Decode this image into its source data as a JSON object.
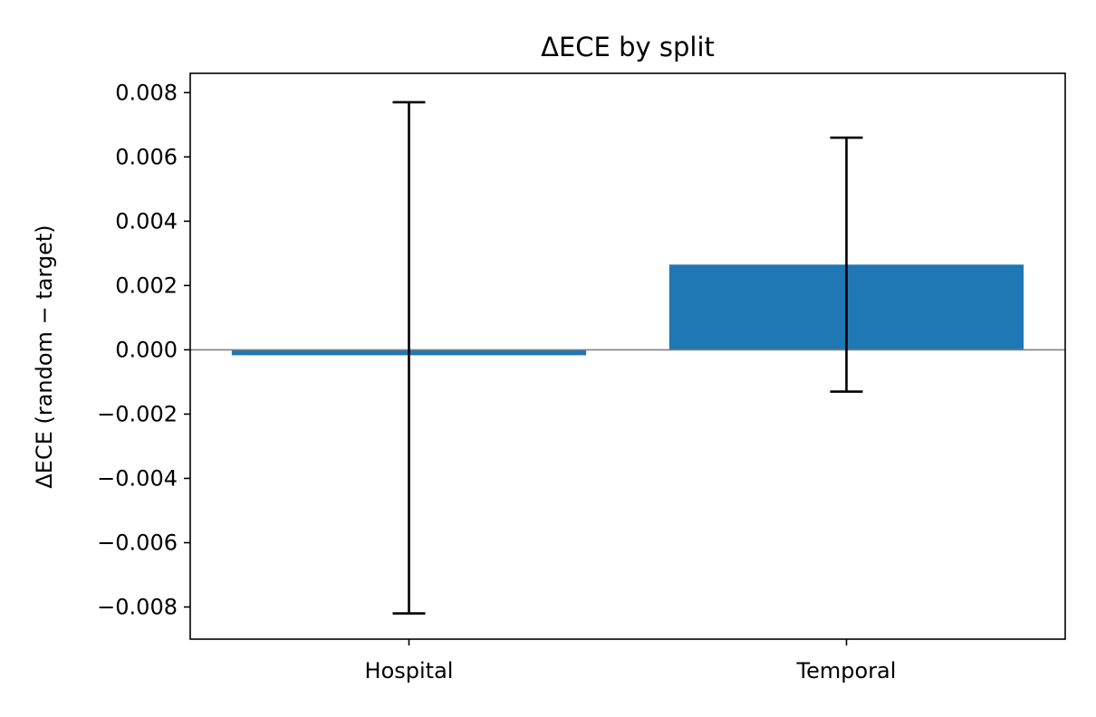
{
  "chart_data": {
    "type": "bar",
    "title": "ΔECE by split",
    "xlabel": "",
    "ylabel": "ΔECE (random − target)",
    "categories": [
      "Hospital",
      "Temporal"
    ],
    "values": [
      -0.00017,
      0.00265
    ],
    "error_bars": [
      {
        "category": "Hospital",
        "low": -0.0082,
        "high": 0.0077
      },
      {
        "category": "Temporal",
        "low": -0.0013,
        "high": 0.0066
      }
    ],
    "ylim": [
      -0.009,
      0.0086
    ],
    "yticks": [
      -0.008,
      -0.006,
      -0.004,
      -0.002,
      0.0,
      0.002,
      0.004,
      0.006,
      0.008
    ],
    "ytick_labels": [
      "−0.008",
      "−0.006",
      "−0.004",
      "−0.002",
      "0.000",
      "0.002",
      "0.004",
      "0.006",
      "0.008"
    ],
    "zero_line": true,
    "grid": false,
    "colors": {
      "bar": "#1f77b4",
      "error_bar": "#000000",
      "zero_line": "#808080"
    }
  }
}
